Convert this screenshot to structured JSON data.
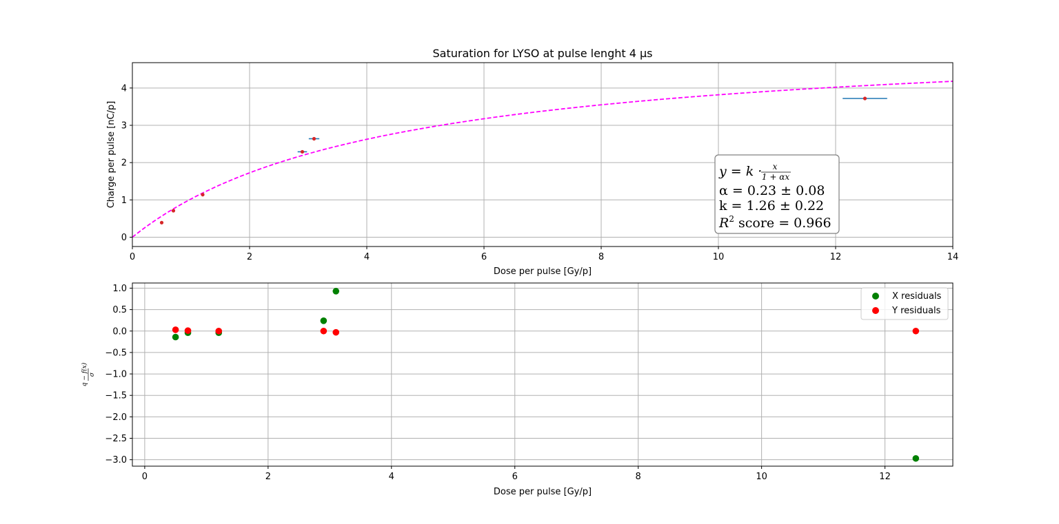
{
  "chart_data": [
    {
      "type": "scatter",
      "title": "Saturation for LYSO at pulse lenght 4 μs",
      "xlabel": "Dose per pulse [Gy/p]",
      "ylabel": "Charge per pulse [nC/p]",
      "xlim": [
        0,
        14
      ],
      "ylim": [
        -0.25,
        4.68
      ],
      "xticks": [
        "0",
        "2",
        "4",
        "6",
        "8",
        "10",
        "12",
        "14"
      ],
      "yticks": [
        "0",
        "1",
        "2",
        "3",
        "4"
      ],
      "grid": true,
      "series": [
        {
          "kind": "errorbar",
          "color": "#1f77b4",
          "marker_color": "#d62728",
          "points": [
            {
              "x": 0.5,
              "y": 0.39,
              "xerr": 0.0
            },
            {
              "x": 0.7,
              "y": 0.71,
              "xerr": 0.0
            },
            {
              "x": 1.2,
              "y": 1.14,
              "xerr": 0.0
            },
            {
              "x": 2.9,
              "y": 2.29,
              "xerr": 0.08
            },
            {
              "x": 3.1,
              "y": 2.64,
              "xerr": 0.09
            },
            {
              "x": 12.5,
              "y": 3.72,
              "xerr": 0.38
            }
          ]
        },
        {
          "kind": "fit",
          "style": "dashed",
          "color": "#ff00ff",
          "formula": "y = k·x/(1+αx)",
          "alpha": 0.23,
          "k": 1.26
        }
      ],
      "annotation": {
        "line1": "y = k · ",
        "frac_num": "x",
        "frac_den": "1 + αx",
        "line2": "α = 0.23 ± 0.08",
        "line3": "k = 1.26 ± 0.22",
        "line4_pre": "R",
        "line4_sup": "2",
        "line4_post": " score = 0.966"
      }
    },
    {
      "type": "scatter",
      "xlabel": "Dose per pulse [Gy/p]",
      "ylabel": "(q − f(x)) / σ",
      "ylabel_num": "q − f(x)",
      "ylabel_den": "σ",
      "xlim": [
        -0.2,
        13.1
      ],
      "ylim": [
        -3.15,
        1.12
      ],
      "xticks": [
        "0",
        "2",
        "4",
        "6",
        "8",
        "10",
        "12"
      ],
      "yticks": [
        "1.0",
        "0.5",
        "0.0",
        "−0.5",
        "−1.0",
        "−1.5",
        "−2.0",
        "−2.5",
        "−3.0"
      ],
      "grid": true,
      "legend": "top-right",
      "series": [
        {
          "name": "X residuals",
          "color": "#008000",
          "x": [
            0.5,
            0.7,
            1.2,
            2.9,
            3.1,
            12.5
          ],
          "y": [
            -0.14,
            -0.04,
            -0.04,
            0.24,
            0.93,
            -2.97
          ]
        },
        {
          "name": "Y residuals",
          "color": "#ff0000",
          "x": [
            0.5,
            0.7,
            1.2,
            2.9,
            3.1,
            12.5
          ],
          "y": [
            0.03,
            0.01,
            0.0,
            0.0,
            -0.03,
            0.0
          ]
        }
      ]
    }
  ]
}
